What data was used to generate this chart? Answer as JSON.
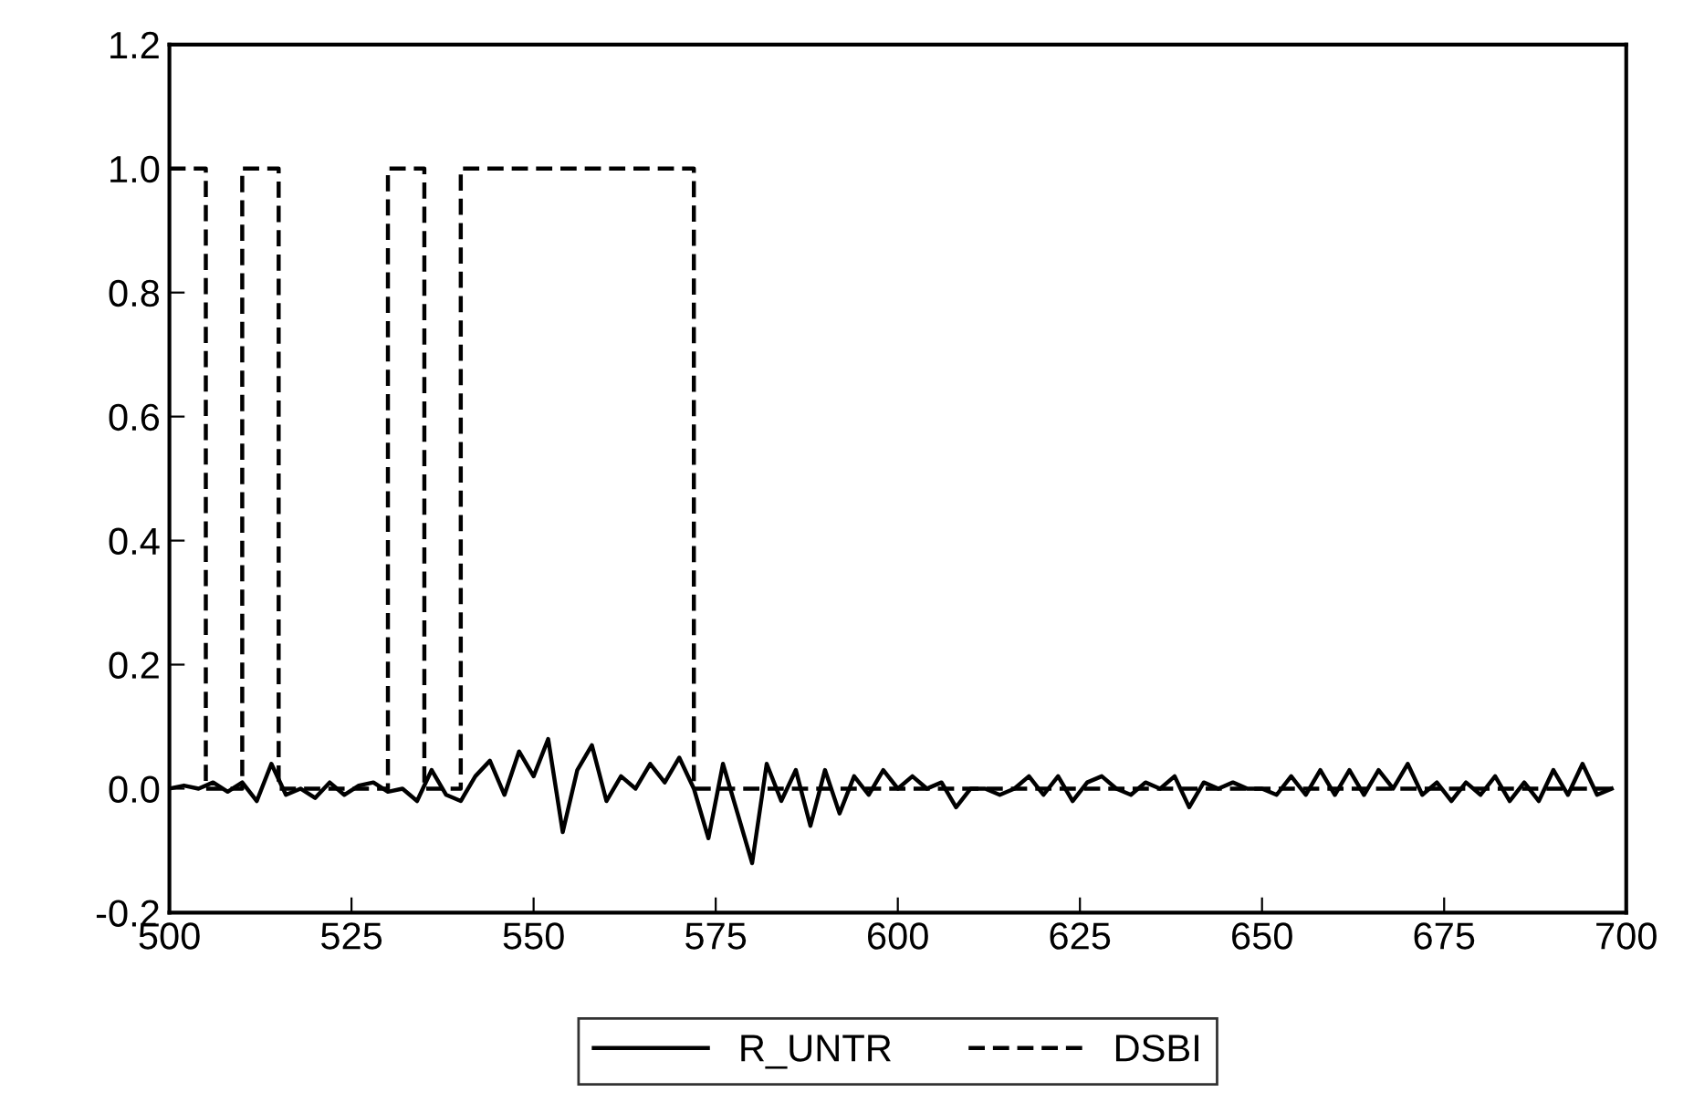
{
  "chart_data": {
    "type": "line",
    "xlim": [
      500,
      700
    ],
    "ylim": [
      -0.2,
      1.2
    ],
    "xticks": [
      500,
      525,
      550,
      575,
      600,
      625,
      650,
      675,
      700
    ],
    "yticks": [
      {
        "value": -0.2,
        "label": "-0.2"
      },
      {
        "value": 0.0,
        "label": "0.0"
      },
      {
        "value": 0.2,
        "label": "0.2"
      },
      {
        "value": 0.4,
        "label": "0.4"
      },
      {
        "value": 0.6,
        "label": "0.6"
      },
      {
        "value": 0.8,
        "label": "0.8"
      },
      {
        "value": 1.0,
        "label": "1.0"
      },
      {
        "value": 1.2,
        "label": "1.2"
      }
    ],
    "grid": false,
    "legend": "bottom",
    "series": [
      {
        "name": "R_UNTR",
        "color": "#000000",
        "line_style": "solid",
        "x": [
          500,
          502,
          504,
          506,
          508,
          510,
          512,
          514,
          516,
          518,
          520,
          522,
          524,
          526,
          528,
          530,
          532,
          534,
          536,
          538,
          540,
          542,
          544,
          546,
          548,
          550,
          552,
          554,
          556,
          558,
          560,
          562,
          564,
          566,
          568,
          570,
          572,
          574,
          576,
          578,
          580,
          582,
          584,
          586,
          588,
          590,
          592,
          594,
          596,
          598,
          600,
          602,
          604,
          606,
          608,
          610,
          612,
          614,
          616,
          618,
          620,
          622,
          624,
          626,
          628,
          630,
          632,
          634,
          636,
          638,
          640,
          642,
          644,
          646,
          648,
          650,
          652,
          654,
          656,
          658,
          660,
          662,
          664,
          666,
          668,
          670,
          672,
          674,
          676,
          678,
          680,
          682,
          684,
          686,
          688,
          690,
          692,
          694,
          696,
          698
        ],
        "values": [
          0.0,
          0.005,
          0.0,
          0.01,
          -0.005,
          0.01,
          -0.02,
          0.04,
          -0.01,
          0.0,
          -0.015,
          0.01,
          -0.01,
          0.005,
          0.01,
          -0.005,
          0.0,
          -0.02,
          0.03,
          -0.01,
          -0.02,
          0.02,
          0.045,
          -0.01,
          0.06,
          0.02,
          0.08,
          -0.07,
          0.03,
          0.07,
          -0.02,
          0.02,
          0.0,
          0.04,
          0.01,
          0.05,
          0.0,
          -0.08,
          0.04,
          -0.04,
          -0.12,
          0.04,
          -0.02,
          0.03,
          -0.06,
          0.03,
          -0.04,
          0.02,
          -0.01,
          0.03,
          0.0,
          0.02,
          0.0,
          0.01,
          -0.03,
          0.0,
          0.0,
          -0.01,
          0.0,
          0.02,
          -0.01,
          0.02,
          -0.02,
          0.01,
          0.02,
          0.0,
          -0.01,
          0.01,
          0.0,
          0.02,
          -0.03,
          0.01,
          0.0,
          0.01,
          0.0,
          0.0,
          -0.01,
          0.02,
          -0.01,
          0.03,
          -0.01,
          0.03,
          -0.01,
          0.03,
          0.0,
          0.04,
          -0.01,
          0.01,
          -0.02,
          0.01,
          -0.01,
          0.02,
          -0.02,
          0.01,
          -0.02,
          0.03,
          -0.01,
          0.04,
          -0.01,
          0.0
        ]
      },
      {
        "name": "DSBI",
        "color": "#000000",
        "line_style": "dashed",
        "x": [
          500,
          505,
          505,
          510,
          510,
          515,
          515,
          530,
          530,
          535,
          535,
          540,
          540,
          572,
          572,
          698
        ],
        "values": [
          1,
          1,
          0,
          0,
          1,
          1,
          0,
          0,
          1,
          1,
          0,
          0,
          1,
          1,
          0,
          0
        ]
      }
    ]
  }
}
